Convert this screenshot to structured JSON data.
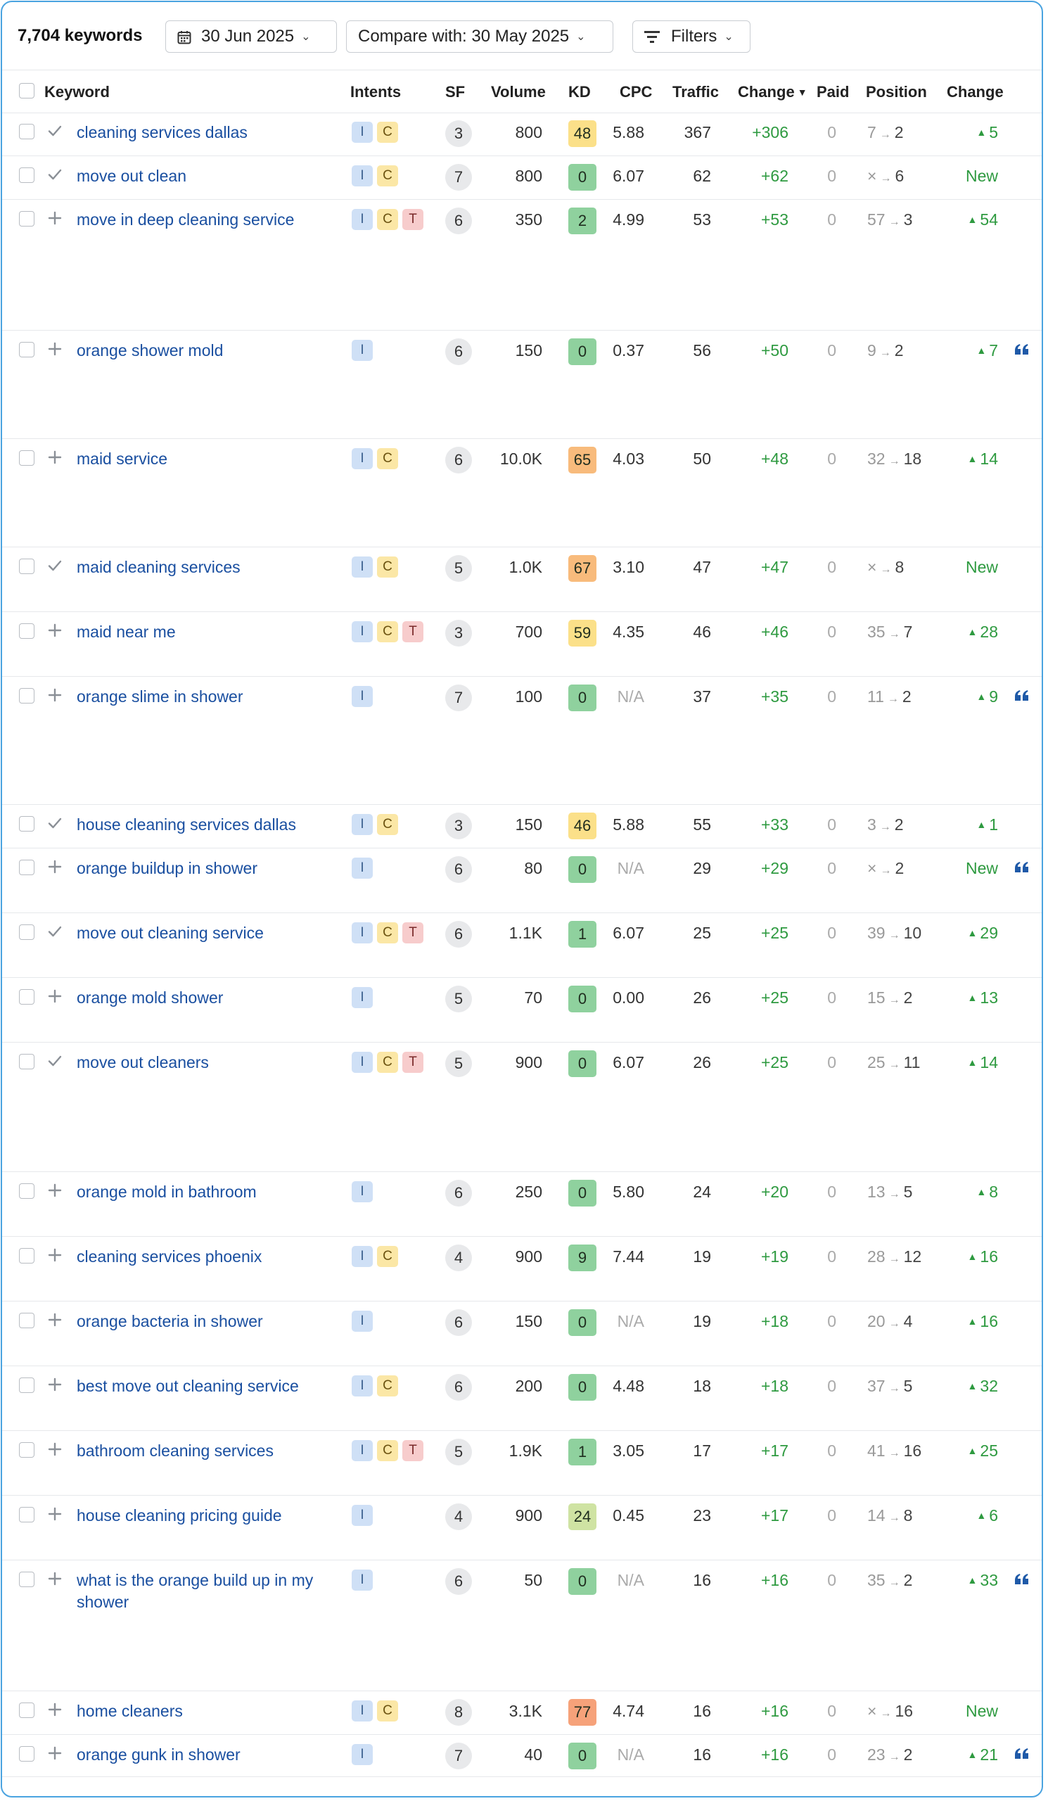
{
  "toolbar": {
    "keyword_count": "7,704 keywords",
    "date_label": "30 Jun 2025",
    "compare_label": "Compare with: 30 May 2025",
    "filters_label": "Filters"
  },
  "columns": {
    "keyword": "Keyword",
    "intents": "Intents",
    "sf": "SF",
    "volume": "Volume",
    "kd": "KD",
    "cpc": "CPC",
    "traffic": "Traffic",
    "change": "Change",
    "paid": "Paid",
    "position": "Position",
    "position_change": "Change"
  },
  "kd_colors": {
    "green": "#8fd19e",
    "lightgreen": "#cfe3a3",
    "yellow": "#fbe089",
    "orange": "#f8bb7c",
    "salmon": "#f6a27a"
  },
  "rows": [
    {
      "mark": "check",
      "keyword": "cleaning services dallas",
      "intents": [
        "I",
        "C"
      ],
      "sf": "3",
      "volume": "800",
      "kd": "48",
      "kd_color": "yellow",
      "cpc": "5.88",
      "traffic": "367",
      "change": "+306",
      "paid": "0",
      "pos_old": "7",
      "pos_new": "2",
      "pos_change": "5",
      "is_new": false,
      "quote": false
    },
    {
      "mark": "check",
      "keyword": "move out clean",
      "intents": [
        "I",
        "C"
      ],
      "sf": "7",
      "volume": "800",
      "kd": "0",
      "kd_color": "green",
      "cpc": "6.07",
      "traffic": "62",
      "change": "+62",
      "paid": "0",
      "pos_old": "×",
      "pos_new": "6",
      "pos_change": "New",
      "is_new": true,
      "quote": false
    },
    {
      "mark": "plus",
      "keyword": "move in deep cleaning service",
      "intents": [
        "I",
        "C",
        "T"
      ],
      "sf": "6",
      "volume": "350",
      "kd": "2",
      "kd_color": "green",
      "cpc": "4.99",
      "traffic": "53",
      "change": "+53",
      "paid": "0",
      "pos_old": "57",
      "pos_new": "3",
      "pos_change": "54",
      "is_new": false,
      "quote": false
    },
    {
      "mark": "plus",
      "keyword": "orange shower mold",
      "intents": [
        "I"
      ],
      "sf": "6",
      "volume": "150",
      "kd": "0",
      "kd_color": "green",
      "cpc": "0.37",
      "traffic": "56",
      "change": "+50",
      "paid": "0",
      "pos_old": "9",
      "pos_new": "2",
      "pos_change": "7",
      "is_new": false,
      "quote": true
    },
    {
      "mark": "plus",
      "keyword": "maid service",
      "intents": [
        "I",
        "C"
      ],
      "sf": "6",
      "volume": "10.0K",
      "kd": "65",
      "kd_color": "orange",
      "cpc": "4.03",
      "traffic": "50",
      "change": "+48",
      "paid": "0",
      "pos_old": "32",
      "pos_new": "18",
      "pos_change": "14",
      "is_new": false,
      "quote": false
    },
    {
      "mark": "check",
      "keyword": "maid cleaning services",
      "intents": [
        "I",
        "C"
      ],
      "sf": "5",
      "volume": "1.0K",
      "kd": "67",
      "kd_color": "orange",
      "cpc": "3.10",
      "traffic": "47",
      "change": "+47",
      "paid": "0",
      "pos_old": "×",
      "pos_new": "8",
      "pos_change": "New",
      "is_new": true,
      "quote": false
    },
    {
      "mark": "plus",
      "keyword": "maid near me",
      "intents": [
        "I",
        "C",
        "T"
      ],
      "sf": "3",
      "volume": "700",
      "kd": "59",
      "kd_color": "yellow",
      "cpc": "4.35",
      "traffic": "46",
      "change": "+46",
      "paid": "0",
      "pos_old": "35",
      "pos_new": "7",
      "pos_change": "28",
      "is_new": false,
      "quote": false
    },
    {
      "mark": "plus",
      "keyword": "orange slime in shower",
      "intents": [
        "I"
      ],
      "sf": "7",
      "volume": "100",
      "kd": "0",
      "kd_color": "green",
      "cpc": "N/A",
      "traffic": "37",
      "change": "+35",
      "paid": "0",
      "pos_old": "11",
      "pos_new": "2",
      "pos_change": "9",
      "is_new": false,
      "quote": true
    },
    {
      "mark": "check",
      "keyword": "house cleaning services dallas",
      "intents": [
        "I",
        "C"
      ],
      "sf": "3",
      "volume": "150",
      "kd": "46",
      "kd_color": "yellow",
      "cpc": "5.88",
      "traffic": "55",
      "change": "+33",
      "paid": "0",
      "pos_old": "3",
      "pos_new": "2",
      "pos_change": "1",
      "is_new": false,
      "quote": false
    },
    {
      "mark": "plus",
      "keyword": "orange buildup in shower",
      "intents": [
        "I"
      ],
      "sf": "6",
      "volume": "80",
      "kd": "0",
      "kd_color": "green",
      "cpc": "N/A",
      "traffic": "29",
      "change": "+29",
      "paid": "0",
      "pos_old": "×",
      "pos_new": "2",
      "pos_change": "New",
      "is_new": true,
      "quote": true
    },
    {
      "mark": "check",
      "keyword": "move out cleaning service",
      "intents": [
        "I",
        "C",
        "T"
      ],
      "sf": "6",
      "volume": "1.1K",
      "kd": "1",
      "kd_color": "green",
      "cpc": "6.07",
      "traffic": "25",
      "change": "+25",
      "paid": "0",
      "pos_old": "39",
      "pos_new": "10",
      "pos_change": "29",
      "is_new": false,
      "quote": false
    },
    {
      "mark": "plus",
      "keyword": "orange mold shower",
      "intents": [
        "I"
      ],
      "sf": "5",
      "volume": "70",
      "kd": "0",
      "kd_color": "green",
      "cpc": "0.00",
      "traffic": "26",
      "change": "+25",
      "paid": "0",
      "pos_old": "15",
      "pos_new": "2",
      "pos_change": "13",
      "is_new": false,
      "quote": false
    },
    {
      "mark": "check",
      "keyword": "move out cleaners",
      "intents": [
        "I",
        "C",
        "T"
      ],
      "sf": "5",
      "volume": "900",
      "kd": "0",
      "kd_color": "green",
      "cpc": "6.07",
      "traffic": "26",
      "change": "+25",
      "paid": "0",
      "pos_old": "25",
      "pos_new": "11",
      "pos_change": "14",
      "is_new": false,
      "quote": false
    },
    {
      "mark": "plus",
      "keyword": "orange mold in bathroom",
      "intents": [
        "I"
      ],
      "sf": "6",
      "volume": "250",
      "kd": "0",
      "kd_color": "green",
      "cpc": "5.80",
      "traffic": "24",
      "change": "+20",
      "paid": "0",
      "pos_old": "13",
      "pos_new": "5",
      "pos_change": "8",
      "is_new": false,
      "quote": false
    },
    {
      "mark": "plus",
      "keyword": "cleaning services phoenix",
      "intents": [
        "I",
        "C"
      ],
      "sf": "4",
      "volume": "900",
      "kd": "9",
      "kd_color": "green",
      "cpc": "7.44",
      "traffic": "19",
      "change": "+19",
      "paid": "0",
      "pos_old": "28",
      "pos_new": "12",
      "pos_change": "16",
      "is_new": false,
      "quote": false
    },
    {
      "mark": "plus",
      "keyword": "orange bacteria in shower",
      "intents": [
        "I"
      ],
      "sf": "6",
      "volume": "150",
      "kd": "0",
      "kd_color": "green",
      "cpc": "N/A",
      "traffic": "19",
      "change": "+18",
      "paid": "0",
      "pos_old": "20",
      "pos_new": "4",
      "pos_change": "16",
      "is_new": false,
      "quote": false
    },
    {
      "mark": "plus",
      "keyword": "best move out cleaning service",
      "intents": [
        "I",
        "C"
      ],
      "sf": "6",
      "volume": "200",
      "kd": "0",
      "kd_color": "green",
      "cpc": "4.48",
      "traffic": "18",
      "change": "+18",
      "paid": "0",
      "pos_old": "37",
      "pos_new": "5",
      "pos_change": "32",
      "is_new": false,
      "quote": false
    },
    {
      "mark": "plus",
      "keyword": "bathroom cleaning services",
      "intents": [
        "I",
        "C",
        "T"
      ],
      "sf": "5",
      "volume": "1.9K",
      "kd": "1",
      "kd_color": "green",
      "cpc": "3.05",
      "traffic": "17",
      "change": "+17",
      "paid": "0",
      "pos_old": "41",
      "pos_new": "16",
      "pos_change": "25",
      "is_new": false,
      "quote": false
    },
    {
      "mark": "plus",
      "keyword": "house cleaning pricing guide",
      "intents": [
        "I"
      ],
      "sf": "4",
      "volume": "900",
      "kd": "24",
      "kd_color": "lightgreen",
      "cpc": "0.45",
      "traffic": "23",
      "change": "+17",
      "paid": "0",
      "pos_old": "14",
      "pos_new": "8",
      "pos_change": "6",
      "is_new": false,
      "quote": false
    },
    {
      "mark": "plus",
      "keyword": "what is the orange build up in my shower",
      "intents": [
        "I"
      ],
      "sf": "6",
      "volume": "50",
      "kd": "0",
      "kd_color": "green",
      "cpc": "N/A",
      "traffic": "16",
      "change": "+16",
      "paid": "0",
      "pos_old": "35",
      "pos_new": "2",
      "pos_change": "33",
      "is_new": false,
      "quote": true
    },
    {
      "mark": "plus",
      "keyword": "home cleaners",
      "intents": [
        "I",
        "C"
      ],
      "sf": "8",
      "volume": "3.1K",
      "kd": "77",
      "kd_color": "salmon",
      "cpc": "4.74",
      "traffic": "16",
      "change": "+16",
      "paid": "0",
      "pos_old": "×",
      "pos_new": "16",
      "pos_change": "New",
      "is_new": true,
      "quote": false
    },
    {
      "mark": "plus",
      "keyword": "orange gunk in shower",
      "intents": [
        "I"
      ],
      "sf": "7",
      "volume": "40",
      "kd": "0",
      "kd_color": "green",
      "cpc": "N/A",
      "traffic": "16",
      "change": "+16",
      "paid": "0",
      "pos_old": "23",
      "pos_new": "2",
      "pos_change": "21",
      "is_new": false,
      "quote": true
    }
  ]
}
